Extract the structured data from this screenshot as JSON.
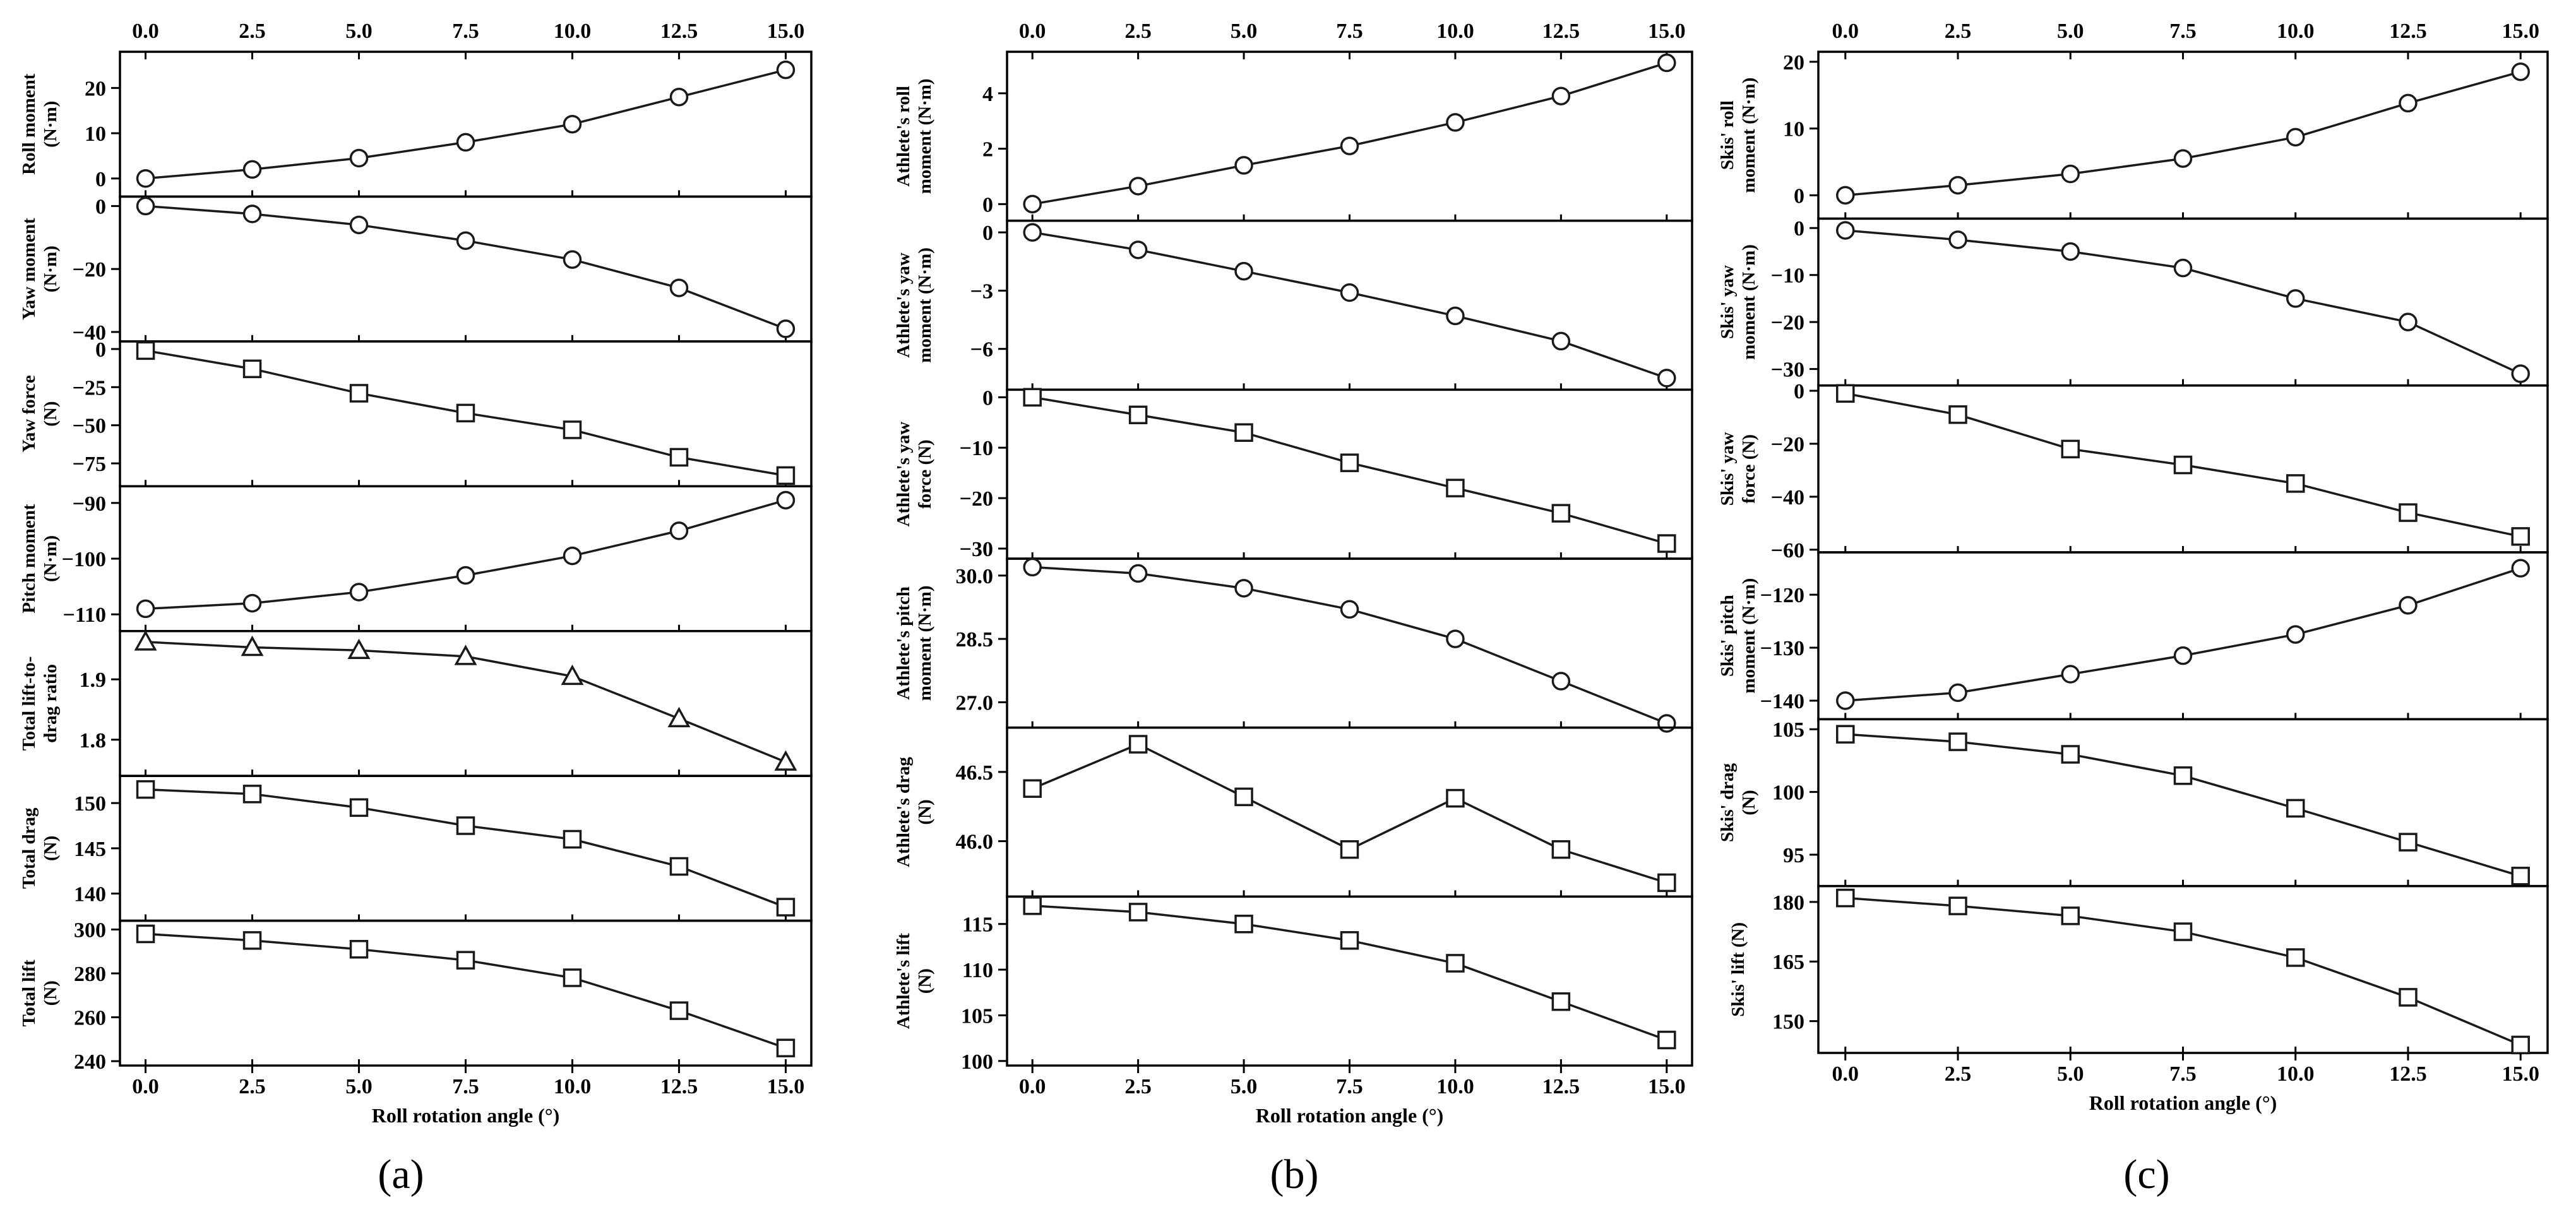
{
  "chart_data": [
    {
      "type": "line",
      "caption": "(a)",
      "xlabel": "Roll rotation angle (°)",
      "x": [
        0,
        2.5,
        5,
        7.5,
        10,
        12.5,
        15
      ],
      "x_ticks": [
        "0.0",
        "2.5",
        "5.0",
        "7.5",
        "10.0",
        "12.5",
        "15.0"
      ],
      "xlim": [
        -0.6,
        15.6
      ],
      "panels": [
        {
          "ylabel": [
            "Roll moment",
            "(N·m)"
          ],
          "marker": "circle",
          "ylim": [
            -4,
            28
          ],
          "y_ticks": [
            0,
            10,
            20
          ],
          "values": [
            0,
            2,
            4.5,
            8,
            12,
            18,
            24
          ]
        },
        {
          "ylabel": [
            "Yaw moment",
            "(N·m)"
          ],
          "marker": "circle",
          "ylim": [
            -43,
            3
          ],
          "y_ticks": [
            0,
            -20,
            -40
          ],
          "values": [
            0,
            -2.5,
            -6,
            -11,
            -17,
            -26,
            -39
          ]
        },
        {
          "ylabel": [
            "Yaw force",
            "(N)"
          ],
          "marker": "square",
          "ylim": [
            -90,
            5
          ],
          "y_ticks": [
            0,
            -25,
            -50,
            -75
          ],
          "values": [
            -1,
            -13,
            -29,
            -42,
            -53,
            -71,
            -83
          ]
        },
        {
          "ylabel": [
            "Pitch moment",
            "(N·m)"
          ],
          "marker": "circle",
          "ylim": [
            -113,
            -87
          ],
          "y_ticks": [
            -90,
            -100,
            -110
          ],
          "values": [
            -109,
            -108,
            -106,
            -103,
            -99.5,
            -95,
            -89.5
          ]
        },
        {
          "ylabel": [
            "Total lift-to-",
            "drag ratio"
          ],
          "marker": "triangle",
          "ylim": [
            1.74,
            1.98
          ],
          "y_ticks": [
            1.9,
            1.8
          ],
          "values": [
            1.962,
            1.953,
            1.948,
            1.938,
            1.905,
            1.835,
            1.763
          ]
        },
        {
          "ylabel": [
            "Total drag",
            "(N)"
          ],
          "marker": "square",
          "ylim": [
            137,
            153
          ],
          "y_ticks": [
            150,
            145,
            140
          ],
          "values": [
            151.5,
            151,
            149.5,
            147.5,
            146,
            143,
            138.5
          ]
        },
        {
          "ylabel": [
            "Total lift",
            "(N)"
          ],
          "marker": "square",
          "ylim": [
            238,
            304
          ],
          "y_ticks": [
            300,
            280,
            260,
            240
          ],
          "values": [
            298,
            295,
            291,
            286,
            278,
            263,
            246
          ]
        }
      ]
    },
    {
      "type": "line",
      "caption": "(b)",
      "xlabel": "Roll rotation angle (°)",
      "x": [
        0,
        2.5,
        5,
        7.5,
        10,
        12.5,
        15
      ],
      "x_ticks": [
        "0.0",
        "2.5",
        "5.0",
        "7.5",
        "10.0",
        "12.5",
        "15.0"
      ],
      "xlim": [
        -0.6,
        15.6
      ],
      "panels": [
        {
          "ylabel": [
            "Athlete's roll",
            "moment (N·m)"
          ],
          "marker": "circle",
          "ylim": [
            -0.6,
            5.5
          ],
          "y_ticks": [
            0,
            2,
            4
          ],
          "values": [
            0,
            0.65,
            1.4,
            2.1,
            2.95,
            3.9,
            5.1
          ]
        },
        {
          "ylabel": [
            "Athlete's yaw",
            "moment (N·m)"
          ],
          "marker": "circle",
          "ylim": [
            -8.1,
            0.6
          ],
          "y_ticks": [
            0,
            -3,
            -6
          ],
          "values": [
            0,
            -0.9,
            -2,
            -3.1,
            -4.3,
            -5.6,
            -7.5
          ]
        },
        {
          "ylabel": [
            "Athlete's yaw",
            "force (N)"
          ],
          "marker": "square",
          "ylim": [
            -32,
            1.5
          ],
          "y_ticks": [
            0,
            -10,
            -20,
            -30
          ],
          "values": [
            0,
            -3.5,
            -7,
            -13,
            -18,
            -23,
            -29
          ]
        },
        {
          "ylabel": [
            "Athlete's pitch",
            "moment (N·m)"
          ],
          "marker": "circle",
          "ylim": [
            26.4,
            30.4
          ],
          "y_ticks": [
            30.0,
            28.5,
            27.0
          ],
          "values": [
            30.2,
            30.05,
            29.7,
            29.2,
            28.5,
            27.5,
            26.5
          ]
        },
        {
          "ylabel": [
            "Athlete's drag",
            "(N)"
          ],
          "marker": "square",
          "ylim": [
            45.6,
            46.82
          ],
          "y_ticks": [
            46.5,
            46.0
          ],
          "values": [
            46.38,
            46.7,
            46.32,
            45.94,
            46.31,
            45.94,
            45.7
          ]
        },
        {
          "ylabel": [
            "Athlete's lift",
            "(N)"
          ],
          "marker": "square",
          "ylim": [
            99.5,
            118
          ],
          "y_ticks": [
            115,
            110,
            105,
            100
          ],
          "values": [
            117,
            116.3,
            115,
            113.2,
            110.7,
            106.5,
            102.3
          ]
        }
      ]
    },
    {
      "type": "line",
      "caption": "(c)",
      "xlabel": "Roll rotation angle (°)",
      "x": [
        0,
        2.5,
        5,
        7.5,
        10,
        12.5,
        15
      ],
      "x_ticks": [
        "0.0",
        "2.5",
        "5.0",
        "7.5",
        "10.0",
        "12.5",
        "15.0"
      ],
      "xlim": [
        -0.6,
        15.6
      ],
      "panels": [
        {
          "ylabel": [
            "Skis' roll",
            "moment (N·m)"
          ],
          "marker": "circle",
          "ylim": [
            -3.5,
            21.5
          ],
          "y_ticks": [
            20,
            10,
            0
          ],
          "values": [
            0,
            1.5,
            3.2,
            5.5,
            8.7,
            13.8,
            18.5
          ]
        },
        {
          "ylabel": [
            "Skis' yaw",
            "moment (N·m)"
          ],
          "marker": "circle",
          "ylim": [
            -33.5,
            2
          ],
          "y_ticks": [
            0,
            -10,
            -20,
            -30
          ],
          "values": [
            -0.5,
            -2.5,
            -5,
            -8.5,
            -15,
            -20,
            -31
          ]
        },
        {
          "ylabel": [
            "Skis' yaw",
            "force (N)"
          ],
          "marker": "square",
          "ylim": [
            -61,
            2
          ],
          "y_ticks": [
            0,
            -20,
            -40,
            -60
          ],
          "values": [
            -1,
            -9,
            -22,
            -28,
            -35,
            -46,
            -55
          ]
        },
        {
          "ylabel": [
            "Skis' pitch",
            "moment (N·m)"
          ],
          "marker": "circle",
          "ylim": [
            -143.5,
            -112
          ],
          "y_ticks": [
            -120,
            -130,
            -140
          ],
          "values": [
            -140,
            -138.5,
            -135,
            -131.5,
            -127.5,
            -122,
            -115
          ]
        },
        {
          "ylabel": [
            "Skis' drag",
            "(N)"
          ],
          "marker": "square",
          "ylim": [
            92.5,
            105.8
          ],
          "y_ticks": [
            105,
            100,
            95
          ],
          "values": [
            104.6,
            104,
            103,
            101.3,
            98.7,
            96,
            93.3
          ]
        },
        {
          "ylabel": [
            "Skis' lift (N)"
          ],
          "marker": "square",
          "ylim": [
            142,
            184
          ],
          "y_ticks": [
            180,
            165,
            150
          ],
          "values": [
            181,
            179,
            176.5,
            172.5,
            166,
            156,
            144
          ]
        }
      ]
    }
  ]
}
